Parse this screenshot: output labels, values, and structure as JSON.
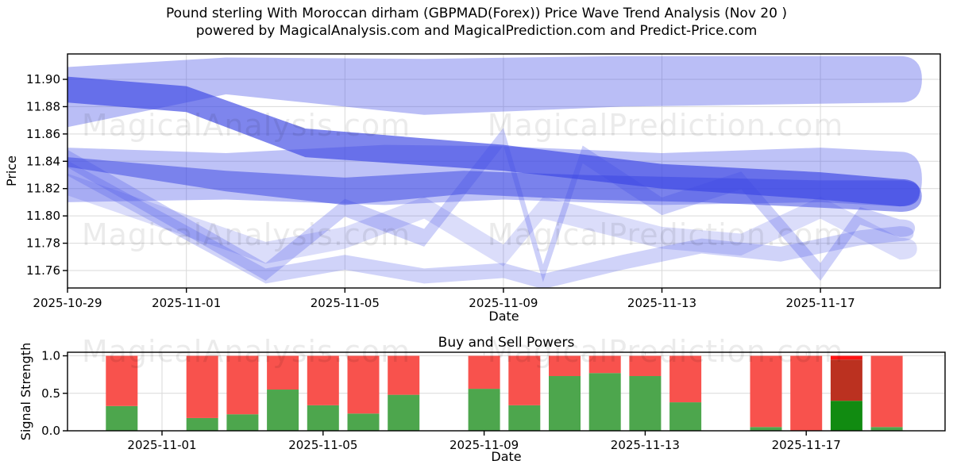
{
  "figure": {
    "title_line1": "Pound sterling With Moroccan dirham (GBPMAD(Forex)) Price Wave Trend Analysis (Nov 20 )",
    "title_line2": "powered by MagicalAnalysis.com and MagicalPrediction.com and Predict-Price.com"
  },
  "watermarks": {
    "analysis": "MagicalAnalysis.com",
    "prediction": "MagicalPrediction.com"
  },
  "colors": {
    "band_blue": "#4a55e8",
    "band_blue_dark": "#3b46e3",
    "buy_green": "#4da64d",
    "sell_red": "#f8524d",
    "strong_buy_green": "#118b11",
    "strong_sell_red": "#bb3120",
    "alert_red": "#ff1414",
    "grid": "#d9d9d9",
    "spine": "#000000",
    "watermark": "rgba(0,0,0,0.08)"
  },
  "chart_data": [
    {
      "id": "price_wave",
      "type": "area",
      "title": "",
      "xlabel": "Date",
      "ylabel": "Price",
      "grid": true,
      "x_ticks": [
        "2025-10-29",
        "2025-11-01",
        "2025-11-05",
        "2025-11-09",
        "2025-11-13",
        "2025-11-17"
      ],
      "y_ticks": [
        11.9,
        11.88,
        11.86,
        11.84,
        11.82,
        11.8,
        11.78,
        11.76
      ],
      "ylim": [
        11.747,
        11.919
      ],
      "x_range": [
        "2025-10-29",
        "2025-11-20"
      ],
      "bands": [
        {
          "name": "upper_channel",
          "color": "band_blue",
          "opacity": 0.38,
          "dates": [
            "2025-10-29",
            "2025-11-02",
            "2025-11-07",
            "2025-11-12",
            "2025-11-19"
          ],
          "upper": [
            11.909,
            11.916,
            11.915,
            11.917,
            11.917
          ],
          "lower": [
            11.865,
            11.889,
            11.874,
            11.88,
            11.883
          ]
        },
        {
          "name": "mid_channel",
          "color": "band_blue",
          "opacity": 0.36,
          "dates": [
            "2025-10-29",
            "2025-11-02",
            "2025-11-06",
            "2025-11-09",
            "2025-11-13",
            "2025-11-17",
            "2025-11-19"
          ],
          "upper": [
            11.85,
            11.846,
            11.852,
            11.851,
            11.846,
            11.85,
            11.847
          ],
          "lower": [
            11.81,
            11.812,
            11.808,
            11.812,
            11.808,
            11.81,
            11.807
          ]
        },
        {
          "name": "oscillation_slow",
          "color": "band_blue",
          "opacity": 0.2,
          "width": 0.016,
          "dates": [
            "2025-10-29",
            "2025-11-03",
            "2025-11-05",
            "2025-11-07",
            "2025-11-09",
            "2025-11-10",
            "2025-11-13",
            "2025-11-15",
            "2025-11-17",
            "2025-11-19"
          ],
          "mid": [
            11.823,
            11.773,
            11.784,
            11.806,
            11.771,
            11.806,
            11.784,
            11.779,
            11.806,
            11.776
          ]
        },
        {
          "name": "support_drift",
          "color": "band_blue",
          "opacity": 0.26,
          "width": 0.011,
          "dates": [
            "2025-10-29",
            "2025-11-03",
            "2025-11-05",
            "2025-11-07",
            "2025-11-09",
            "2025-11-10",
            "2025-11-12",
            "2025-11-14",
            "2025-11-16",
            "2025-11-18",
            "2025-11-19"
          ],
          "mid": [
            11.835,
            11.756,
            11.766,
            11.756,
            11.76,
            11.752,
            11.766,
            11.778,
            11.772,
            11.784,
            11.787
          ]
        },
        {
          "name": "oscillation_fast",
          "color": "band_blue",
          "opacity": 0.28,
          "width": 0.013,
          "dates": [
            "2025-10-29",
            "2025-11-03",
            "2025-11-05",
            "2025-11-07",
            "2025-11-09",
            "2025-11-10",
            "2025-11-11",
            "2025-11-13",
            "2025-11-15",
            "2025-11-17",
            "2025-11-18",
            "2025-11-19"
          ],
          "mid": [
            11.842,
            11.759,
            11.806,
            11.784,
            11.858,
            11.758,
            11.845,
            11.807,
            11.826,
            11.759,
            11.8,
            11.791
          ]
        },
        {
          "name": "secondary_trend",
          "color": "band_blue_dark",
          "opacity": 0.52,
          "dates": [
            "2025-10-29",
            "2025-11-02",
            "2025-11-05",
            "2025-11-08",
            "2025-11-11",
            "2025-11-14",
            "2025-11-17",
            "2025-11-19"
          ],
          "upper": [
            11.843,
            11.833,
            11.828,
            11.833,
            11.83,
            11.828,
            11.826,
            11.826
          ],
          "lower": [
            11.836,
            11.818,
            11.808,
            11.816,
            11.812,
            11.81,
            11.806,
            11.803
          ]
        },
        {
          "name": "primary_trend",
          "color": "band_blue_dark",
          "opacity": 0.66,
          "dates": [
            "2025-10-29",
            "2025-11-01",
            "2025-11-04",
            "2025-11-09",
            "2025-11-13",
            "2025-11-17",
            "2025-11-19"
          ],
          "upper": [
            11.902,
            11.895,
            11.864,
            11.852,
            11.838,
            11.832,
            11.827
          ],
          "lower": [
            11.883,
            11.876,
            11.843,
            11.833,
            11.82,
            11.812,
            11.807
          ]
        }
      ]
    },
    {
      "id": "buy_sell_powers",
      "type": "bar",
      "title": "Buy and Sell Powers",
      "xlabel": "Date",
      "ylabel": "Signal Strength",
      "grid": true,
      "x_ticks": [
        "2025-11-01",
        "2025-11-05",
        "2025-11-09",
        "2025-11-13",
        "2025-11-17"
      ],
      "y_ticks": [
        1.0,
        0.5,
        0.0
      ],
      "ylim": [
        0,
        1.05
      ],
      "stack_total": 1.0,
      "bars": [
        {
          "date": "2025-10-31",
          "buy": 0.33,
          "sell": 0.67
        },
        {
          "date": "2025-11-02",
          "buy": 0.17,
          "sell": 0.83
        },
        {
          "date": "2025-11-03",
          "buy": 0.22,
          "sell": 0.78
        },
        {
          "date": "2025-11-04",
          "buy": 0.55,
          "sell": 0.45
        },
        {
          "date": "2025-11-05",
          "buy": 0.34,
          "sell": 0.66
        },
        {
          "date": "2025-11-06",
          "buy": 0.23,
          "sell": 0.77
        },
        {
          "date": "2025-11-07",
          "buy": 0.48,
          "sell": 0.52
        },
        {
          "date": "2025-11-09",
          "buy": 0.56,
          "sell": 0.44
        },
        {
          "date": "2025-11-10",
          "buy": 0.34,
          "sell": 0.66
        },
        {
          "date": "2025-11-11",
          "buy": 0.73,
          "sell": 0.27
        },
        {
          "date": "2025-11-12",
          "buy": 0.77,
          "sell": 0.23
        },
        {
          "date": "2025-11-13",
          "buy": 0.73,
          "sell": 0.27
        },
        {
          "date": "2025-11-14",
          "buy": 0.38,
          "sell": 0.62
        },
        {
          "date": "2025-11-16",
          "buy": 0.05,
          "sell": 0.95
        },
        {
          "date": "2025-11-17",
          "buy": 0.0,
          "sell": 1.0
        },
        {
          "date": "2025-11-18",
          "buy": 0.4,
          "sell": 0.6,
          "emphasis": true,
          "segments": [
            {
              "to": 0.4,
              "color": "strong_buy_green"
            },
            {
              "to": 0.95,
              "color": "strong_sell_red"
            },
            {
              "to": 1.0,
              "color": "alert_red"
            }
          ]
        },
        {
          "date": "2025-11-19",
          "buy": 0.05,
          "sell": 0.95
        }
      ]
    }
  ]
}
